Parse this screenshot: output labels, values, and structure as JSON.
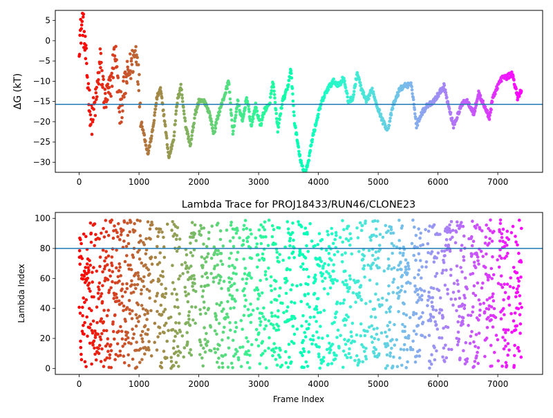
{
  "chart_data": [
    {
      "type": "scatter",
      "title": "",
      "xlabel": "",
      "ylabel": "ΔG (kT)",
      "xlim": [
        -400,
        7750
      ],
      "ylim": [
        -32.5,
        7.5
      ],
      "xticks": [
        0,
        1000,
        2000,
        3000,
        4000,
        5000,
        6000,
        7000
      ],
      "yticks": [
        5,
        0,
        -5,
        -10,
        -15,
        -20,
        -25,
        -30
      ],
      "reference_line": -15.7,
      "grid": false,
      "colormap": "rainbow",
      "color_by": "frame_index",
      "trace_anchors": [
        [
          0,
          0
        ],
        [
          60,
          5
        ],
        [
          130,
          -8
        ],
        [
          200,
          -20
        ],
        [
          280,
          -15
        ],
        [
          350,
          -5
        ],
        [
          430,
          -15
        ],
        [
          520,
          -12
        ],
        [
          600,
          -2
        ],
        [
          680,
          -18
        ],
        [
          780,
          -10
        ],
        [
          870,
          -6
        ],
        [
          960,
          -2
        ],
        [
          1040,
          -20
        ],
        [
          1150,
          -28
        ],
        [
          1230,
          -22
        ],
        [
          1300,
          -14
        ],
        [
          1360,
          -12
        ],
        [
          1430,
          -20
        ],
        [
          1500,
          -29
        ],
        [
          1580,
          -24
        ],
        [
          1640,
          -15
        ],
        [
          1700,
          -11
        ],
        [
          1780,
          -21
        ],
        [
          1860,
          -26
        ],
        [
          1940,
          -18
        ],
        [
          2000,
          -15
        ],
        [
          2100,
          -15
        ],
        [
          2180,
          -18
        ],
        [
          2250,
          -23
        ],
        [
          2330,
          -18
        ],
        [
          2420,
          -14
        ],
        [
          2500,
          -10
        ],
        [
          2570,
          -23
        ],
        [
          2650,
          -15
        ],
        [
          2730,
          -20
        ],
        [
          2800,
          -14
        ],
        [
          2880,
          -21
        ],
        [
          2950,
          -16
        ],
        [
          3030,
          -21
        ],
        [
          3100,
          -17
        ],
        [
          3180,
          -16
        ],
        [
          3240,
          -10
        ],
        [
          3320,
          -22
        ],
        [
          3400,
          -15
        ],
        [
          3480,
          -12
        ],
        [
          3540,
          -7
        ],
        [
          3600,
          -20
        ],
        [
          3680,
          -28
        ],
        [
          3760,
          -33
        ],
        [
          3830,
          -30
        ],
        [
          3900,
          -24
        ],
        [
          4000,
          -18
        ],
        [
          4060,
          -15
        ],
        [
          4150,
          -12
        ],
        [
          4250,
          -10
        ],
        [
          4350,
          -11
        ],
        [
          4420,
          -9
        ],
        [
          4500,
          -15
        ],
        [
          4580,
          -14
        ],
        [
          4650,
          -8
        ],
        [
          4720,
          -12
        ],
        [
          4800,
          -15
        ],
        [
          4900,
          -12
        ],
        [
          4980,
          -16
        ],
        [
          5080,
          -20
        ],
        [
          5160,
          -22
        ],
        [
          5250,
          -16
        ],
        [
          5360,
          -12
        ],
        [
          5450,
          -11
        ],
        [
          5560,
          -11
        ],
        [
          5640,
          -21
        ],
        [
          5720,
          -18
        ],
        [
          5820,
          -16
        ],
        [
          5920,
          -15
        ],
        [
          6020,
          -13
        ],
        [
          6100,
          -11
        ],
        [
          6190,
          -17
        ],
        [
          6260,
          -21
        ],
        [
          6340,
          -18
        ],
        [
          6420,
          -15
        ],
        [
          6500,
          -15
        ],
        [
          6600,
          -18
        ],
        [
          6680,
          -13
        ],
        [
          6770,
          -16
        ],
        [
          6860,
          -19
        ],
        [
          6920,
          -14
        ],
        [
          7000,
          -11
        ],
        [
          7080,
          -9
        ],
        [
          7160,
          -9
        ],
        [
          7240,
          -8
        ],
        [
          7330,
          -14
        ],
        [
          7400,
          -12
        ]
      ]
    },
    {
      "type": "scatter",
      "title": "Lambda Trace for PROJ18433/RUN46/CLONE23",
      "xlabel": "Frame Index",
      "ylabel": "Lambda Index",
      "xlim": [
        -400,
        7750
      ],
      "ylim": [
        -4,
        104
      ],
      "xticks": [
        0,
        1000,
        2000,
        3000,
        4000,
        5000,
        6000,
        7000
      ],
      "yticks": [
        0,
        20,
        40,
        60,
        80,
        100
      ],
      "reference_line": 80,
      "grid": false,
      "colormap": "rainbow",
      "color_by": "frame_index",
      "frame_range": [
        0,
        7400
      ],
      "lambda_range": [
        0,
        99
      ]
    }
  ],
  "colors": {
    "reference_line": "#1f77b4",
    "axes": "#000000",
    "background": "#ffffff"
  }
}
